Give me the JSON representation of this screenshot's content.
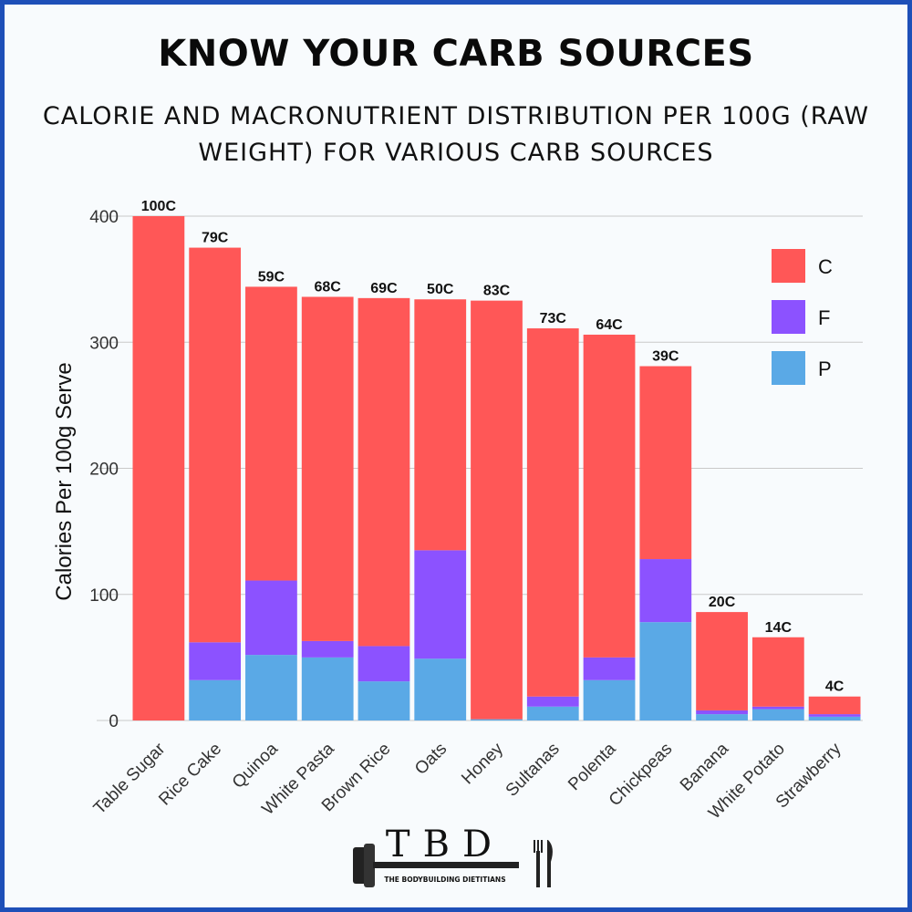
{
  "title": "KNOW YOUR CARB SOURCES",
  "subtitle": "CALORIE AND MACRONUTRIENT DISTRIBUTION PER 100G (RAW WEIGHT) FOR VARIOUS CARB SOURCES",
  "logo": {
    "letters": "TBD",
    "tagline": "THE BODYBUILDING DIETITIANS"
  },
  "chart_data": {
    "type": "bar",
    "stacked": true,
    "ylabel": "Calories Per 100g Serve",
    "xlabel": "",
    "ylim": [
      0,
      400
    ],
    "yticks": [
      0,
      100,
      200,
      300,
      400
    ],
    "grid": true,
    "legend_position": "top-right",
    "categories": [
      "Table Sugar",
      "Rice Cake",
      "Quinoa",
      "White Pasta",
      "Brown Rice",
      "Oats",
      "Honey",
      "Sultanas",
      "Polenta",
      "Chickpeas",
      "Banana",
      "White Potato",
      "Strawberry"
    ],
    "bar_labels": [
      "100C",
      "79C",
      "59C",
      "68C",
      "69C",
      "50C",
      "83C",
      "73C",
      "64C",
      "39C",
      "20C",
      "14C",
      "4C"
    ],
    "series": [
      {
        "name": "P",
        "color": "#5aa9e6",
        "values": [
          0,
          32,
          52,
          50,
          31,
          49,
          1,
          11,
          32,
          78,
          5,
          9,
          3
        ]
      },
      {
        "name": "F",
        "color": "#8c52ff",
        "values": [
          0,
          30,
          59,
          13,
          28,
          86,
          0,
          8,
          18,
          50,
          3,
          2,
          2
        ]
      },
      {
        "name": "C",
        "color": "#ff5757",
        "values": [
          400,
          313,
          233,
          273,
          276,
          199,
          332,
          292,
          256,
          153,
          78,
          55,
          14
        ]
      }
    ],
    "legend_order": [
      "C",
      "F",
      "P"
    ]
  }
}
